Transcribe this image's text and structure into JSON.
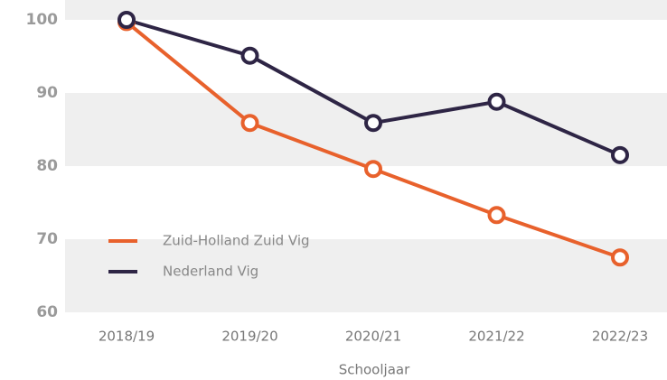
{
  "chart_data": {
    "type": "line",
    "x_label": "Schooljaar",
    "categories": [
      "2018/19",
      "2019/20",
      "2020/21",
      "2021/22",
      "2022/23"
    ],
    "series": [
      {
        "name": "Zuid-Holland Zuid Vig",
        "color": "#e8612c",
        "values": [
          99.7,
          85.9,
          79.6,
          73.3,
          67.5
        ]
      },
      {
        "name": "Nederland Vig",
        "color": "#2e2545",
        "values": [
          100,
          95.1,
          85.9,
          88.8,
          81.5
        ]
      }
    ],
    "ylim": [
      60,
      100
    ],
    "yticks": [
      60,
      70,
      80,
      90,
      100
    ],
    "grid": true,
    "legend": "lower left"
  }
}
